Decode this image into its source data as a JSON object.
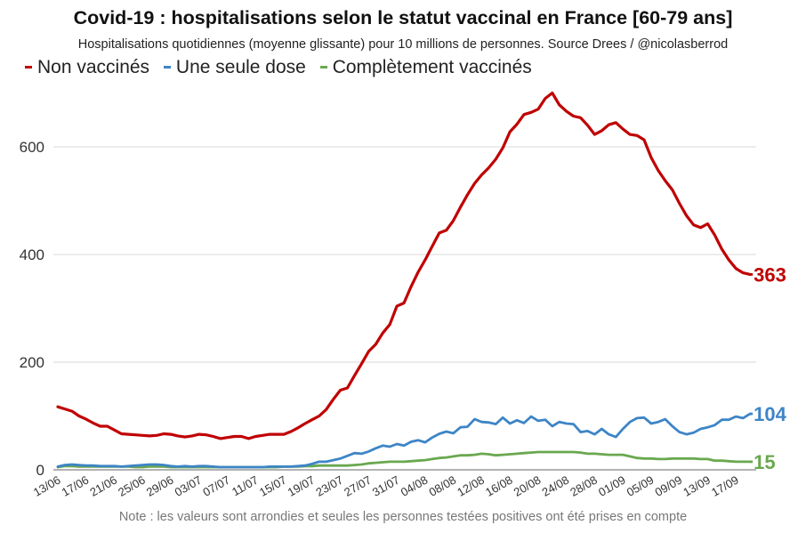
{
  "header": {
    "title": "Covid-19 : hospitalisations selon le statut vaccinal en France [60-79 ans]",
    "subtitle": "Hospitalisations quotidiennes (moyenne glissante) pour 10 millions de personnes. Source Drees / @nicolasberrod"
  },
  "legend": [
    {
      "label": "Non vaccinés",
      "color": "#c00000"
    },
    {
      "label": "Une seule dose",
      "color": "#3d85c6"
    },
    {
      "label": "Complètement vaccinés",
      "color": "#6aa84f"
    }
  ],
  "footer": {
    "note": "Note : les valeurs sont arrondies et seules les personnes testées positives ont été prises en compte"
  },
  "chart_data": {
    "type": "line",
    "title": "Covid-19 : hospitalisations selon le statut vaccinal en France [60-79 ans]",
    "xlabel": "",
    "ylabel": "",
    "ylim": [
      0,
      710
    ],
    "yticks": [
      "0",
      "200",
      "400",
      "600"
    ],
    "ytick_values": [
      0,
      200,
      400,
      600
    ],
    "grid": true,
    "legend_position": "top-left",
    "x_start": "13/06",
    "x_step_days": 1,
    "xtick_every_days": 4,
    "xticks": [
      "13/06",
      "17/06",
      "21/06",
      "25/06",
      "29/06",
      "03/07",
      "07/07",
      "11/07",
      "15/07",
      "19/07",
      "23/07",
      "27/07",
      "31/07",
      "04/08",
      "08/08",
      "12/08",
      "16/08",
      "20/08",
      "24/08",
      "28/08",
      "01/09",
      "05/09",
      "09/09",
      "13/09",
      "17/09"
    ],
    "series": [
      {
        "name": "Non vaccinés",
        "color": "#c00000",
        "end_label": "363",
        "values": [
          117,
          113,
          109,
          100,
          94,
          87,
          81,
          81,
          74,
          67,
          66,
          65,
          64,
          63,
          64,
          67,
          66,
          63,
          61,
          63,
          66,
          65,
          62,
          58,
          60,
          62,
          62,
          58,
          62,
          64,
          66,
          66,
          66,
          71,
          78,
          86,
          93,
          100,
          112,
          131,
          148,
          152,
          175,
          197,
          220,
          233,
          254,
          270,
          304,
          310,
          340,
          367,
          390,
          415,
          440,
          445,
          463,
          488,
          511,
          532,
          548,
          561,
          577,
          598,
          628,
          642,
          660,
          664,
          670,
          690,
          700,
          678,
          666,
          657,
          654,
          640,
          623,
          630,
          641,
          645,
          633,
          623,
          621,
          613,
          580,
          556,
          537,
          520,
          495,
          472,
          455,
          450,
          457,
          436,
          410,
          390,
          374,
          366,
          363
        ]
      },
      {
        "name": "Une seule dose",
        "color": "#3d85c6",
        "end_label": "104",
        "values": [
          6,
          9,
          10,
          9,
          8,
          8,
          7,
          7,
          7,
          6,
          7,
          8,
          9,
          10,
          10,
          9,
          7,
          6,
          7,
          6,
          7,
          7,
          6,
          5,
          5,
          5,
          5,
          5,
          5,
          5,
          6,
          6,
          6,
          6,
          7,
          8,
          11,
          15,
          15,
          18,
          21,
          26,
          31,
          30,
          34,
          40,
          45,
          43,
          48,
          45,
          52,
          55,
          51,
          60,
          67,
          71,
          68,
          79,
          80,
          94,
          89,
          88,
          85,
          97,
          86,
          92,
          87,
          99,
          91,
          93,
          81,
          89,
          86,
          85,
          70,
          72,
          66,
          76,
          66,
          61,
          76,
          89,
          96,
          97,
          86,
          89,
          94,
          81,
          70,
          66,
          69,
          76,
          79,
          83,
          93,
          93,
          99,
          96,
          104
        ]
      },
      {
        "name": "Complètement vaccinés",
        "color": "#6aa84f",
        "end_label": "15",
        "values": [
          5,
          7,
          7,
          6,
          6,
          6,
          6,
          6,
          6,
          6,
          6,
          5,
          5,
          6,
          6,
          6,
          5,
          5,
          5,
          5,
          5,
          5,
          5,
          5,
          5,
          5,
          5,
          5,
          5,
          5,
          5,
          5,
          6,
          6,
          6,
          7,
          7,
          8,
          8,
          8,
          8,
          8,
          9,
          10,
          12,
          13,
          14,
          15,
          15,
          15,
          16,
          17,
          18,
          20,
          22,
          23,
          25,
          27,
          27,
          28,
          30,
          29,
          27,
          28,
          29,
          30,
          31,
          32,
          33,
          33,
          33,
          33,
          33,
          33,
          32,
          30,
          30,
          29,
          28,
          28,
          28,
          25,
          22,
          21,
          21,
          20,
          20,
          21,
          21,
          21,
          21,
          20,
          20,
          17,
          17,
          16,
          15,
          15,
          15
        ]
      }
    ]
  }
}
